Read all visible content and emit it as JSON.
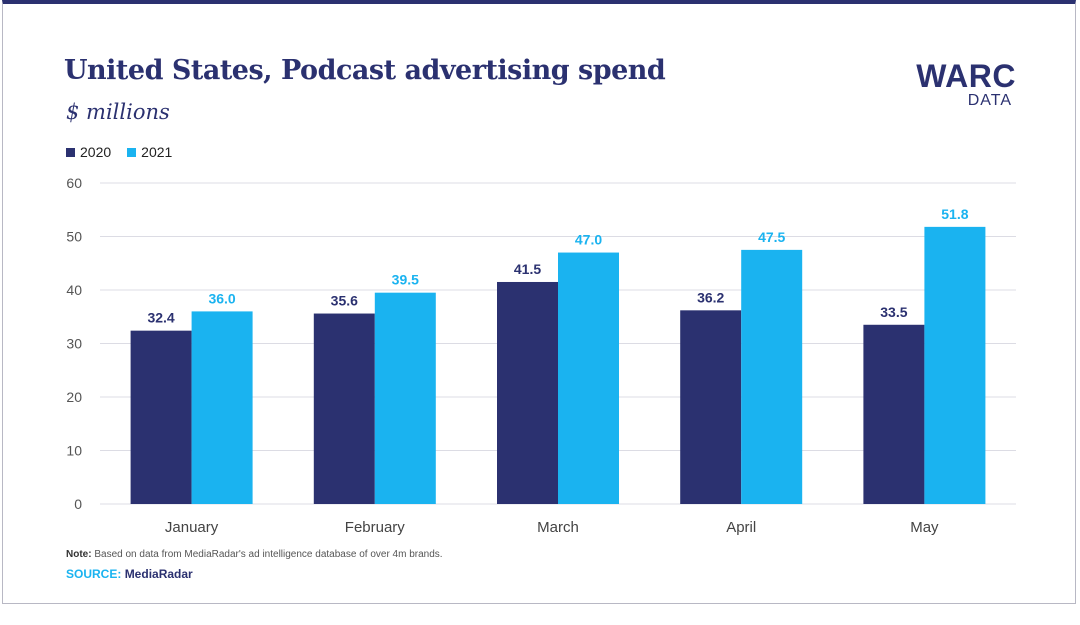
{
  "chart_data": {
    "type": "bar",
    "title": "United States, Podcast advertising spend",
    "subtitle": "$ millions",
    "categories": [
      "January",
      "February",
      "March",
      "April",
      "May"
    ],
    "series": [
      {
        "name": "2020",
        "color": "#2b3170",
        "values": [
          32.4,
          35.6,
          41.5,
          36.2,
          33.5
        ],
        "labels": [
          "32.4",
          "35.6",
          "41.5",
          "36.2",
          "33.5"
        ]
      },
      {
        "name": "2021",
        "color": "#1ab3f0",
        "values": [
          36.0,
          39.5,
          47.0,
          47.5,
          51.8
        ],
        "labels": [
          "36.0",
          "39.5",
          "47.0",
          "47.5",
          "51.8"
        ]
      }
    ],
    "y_ticks": [
      "0",
      "10",
      "20",
      "30",
      "40",
      "50",
      "60"
    ],
    "ylim": [
      0,
      60
    ],
    "grid": true,
    "legend_position": "top-left",
    "xlabel": "",
    "ylabel": ""
  },
  "logo": {
    "main": "WARC",
    "sub": "DATA"
  },
  "footer": {
    "note_label": "Note:",
    "note_text": "Based on data from MediaRadar's ad intelligence database of over 4m brands.",
    "source_label": "SOURCE:",
    "source_text": "MediaRadar"
  }
}
